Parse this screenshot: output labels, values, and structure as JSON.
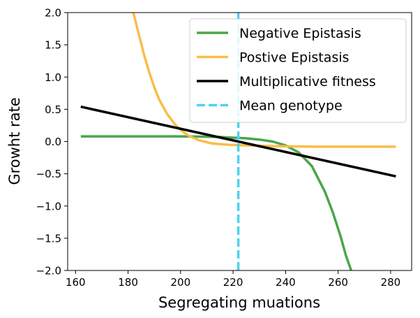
{
  "chart_data": {
    "type": "line",
    "title": "",
    "xlabel": "Segregating muations",
    "ylabel": "Growht rate",
    "xlim": [
      157,
      288
    ],
    "ylim": [
      -2.0,
      2.0
    ],
    "xticks": [
      160,
      180,
      200,
      220,
      240,
      260,
      280
    ],
    "yticks": [
      -2.0,
      -1.5,
      -1.0,
      -0.5,
      0.0,
      0.5,
      1.0,
      1.5,
      2.0
    ],
    "grid": false,
    "legend_position": "top-right",
    "series": [
      {
        "name": "Negative Epistasis",
        "color": "#4aa64a",
        "style": "solid",
        "x": [
          162,
          170,
          180,
          190,
          200,
          210,
          215,
          220,
          225,
          230,
          235,
          240,
          245,
          250,
          255,
          258,
          261,
          263,
          265
        ],
        "y": [
          0.08,
          0.08,
          0.08,
          0.08,
          0.08,
          0.075,
          0.07,
          0.06,
          0.05,
          0.03,
          0.0,
          -0.06,
          -0.17,
          -0.38,
          -0.78,
          -1.1,
          -1.48,
          -1.77,
          -2.0
        ]
      },
      {
        "name": "Postive Epistasis",
        "color": "#f9bd4a",
        "style": "solid",
        "x": [
          182,
          184,
          186,
          188,
          190,
          192,
          195,
          198,
          200,
          203,
          207,
          212,
          218,
          225,
          235,
          250,
          265,
          282
        ],
        "y": [
          2.0,
          1.68,
          1.36,
          1.08,
          0.84,
          0.64,
          0.42,
          0.26,
          0.18,
          0.09,
          0.02,
          -0.03,
          -0.05,
          -0.06,
          -0.07,
          -0.08,
          -0.08,
          -0.08
        ]
      },
      {
        "name": "Multiplicative fitness",
        "color": "#000000",
        "style": "solid",
        "x": [
          162,
          282
        ],
        "y": [
          0.54,
          -0.54
        ]
      },
      {
        "name": "Mean genotype",
        "color": "#4dd3ef",
        "style": "dashed",
        "x": [
          222,
          222
        ],
        "y": [
          -2.0,
          2.0
        ]
      }
    ]
  }
}
